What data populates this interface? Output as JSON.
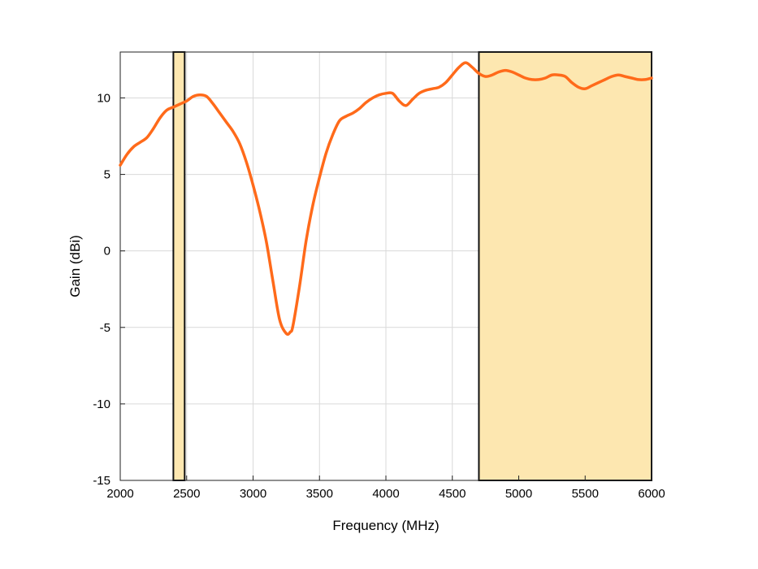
{
  "chart_data": {
    "type": "line",
    "title": "",
    "xlabel": "Frequency (MHz)",
    "ylabel": "Gain (dBi)",
    "xlim": [
      2000,
      6000
    ],
    "ylim": [
      -15,
      13
    ],
    "xticks": [
      2000,
      2500,
      3000,
      3500,
      4000,
      4500,
      5000,
      5500,
      6000
    ],
    "yticks": [
      -15,
      -10,
      -5,
      0,
      5,
      10
    ],
    "grid": true,
    "legend": "none",
    "colors": {
      "line": "#ff6a1a",
      "band_fill": "#fde7b0",
      "band_border": "#111111",
      "grid": "#d9d9d9",
      "axis": "#222222"
    },
    "bands": [
      {
        "x_start": 2400,
        "x_end": 2485
      },
      {
        "x_start": 4700,
        "x_end": 6000
      }
    ],
    "series": [
      {
        "x": [
          2000,
          2050,
          2100,
          2150,
          2200,
          2250,
          2300,
          2350,
          2400,
          2450,
          2500,
          2550,
          2600,
          2650,
          2700,
          2750,
          2800,
          2850,
          2900,
          2950,
          3000,
          3050,
          3100,
          3150,
          3200,
          3250,
          3280,
          3300,
          3350,
          3400,
          3450,
          3500,
          3550,
          3600,
          3650,
          3700,
          3750,
          3800,
          3850,
          3900,
          3950,
          4000,
          4050,
          4100,
          4150,
          4200,
          4250,
          4300,
          4350,
          4400,
          4450,
          4500,
          4550,
          4600,
          4650,
          4700,
          4750,
          4800,
          4850,
          4900,
          4950,
          5000,
          5050,
          5100,
          5150,
          5200,
          5250,
          5300,
          5350,
          5400,
          5450,
          5500,
          5550,
          5600,
          5650,
          5700,
          5750,
          5800,
          5850,
          5900,
          5950,
          6000
        ],
        "y": [
          5.6,
          6.3,
          6.8,
          7.1,
          7.4,
          8.0,
          8.7,
          9.2,
          9.4,
          9.6,
          9.8,
          10.1,
          10.2,
          10.1,
          9.6,
          9.0,
          8.4,
          7.8,
          7.0,
          5.8,
          4.3,
          2.6,
          0.6,
          -2.0,
          -4.5,
          -5.4,
          -5.3,
          -4.9,
          -2.3,
          0.7,
          3.0,
          4.8,
          6.4,
          7.6,
          8.5,
          8.8,
          9.0,
          9.3,
          9.7,
          10.0,
          10.2,
          10.3,
          10.3,
          9.8,
          9.5,
          9.9,
          10.3,
          10.5,
          10.6,
          10.7,
          11.0,
          11.5,
          12.0,
          12.3,
          12.0,
          11.6,
          11.4,
          11.5,
          11.7,
          11.8,
          11.7,
          11.5,
          11.3,
          11.2,
          11.2,
          11.3,
          11.5,
          11.5,
          11.4,
          11.0,
          10.7,
          10.6,
          10.8,
          11.0,
          11.2,
          11.4,
          11.5,
          11.4,
          11.3,
          11.2,
          11.2,
          11.3
        ]
      }
    ]
  }
}
